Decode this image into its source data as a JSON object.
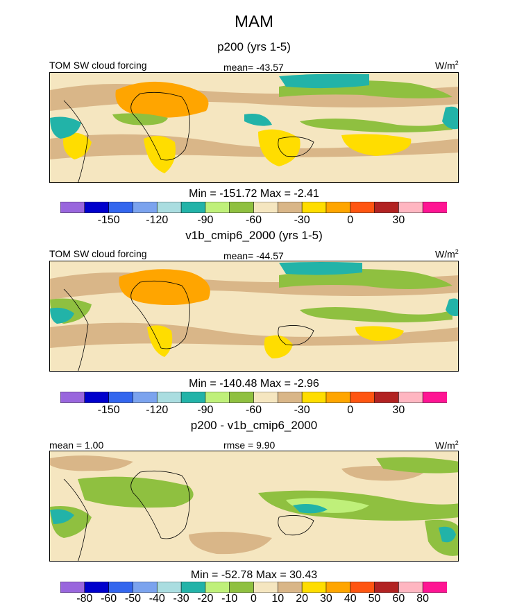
{
  "title": "MAM",
  "colors": {
    "abs": [
      "#9966dd",
      "#0000cc",
      "#3366ee",
      "#7ba3ee",
      "#aadde0",
      "#22b3a8",
      "#bff07a",
      "#8fc040",
      "#f5e6c0",
      "#d9b688",
      "#ffdd00",
      "#ffa500",
      "#ff5511",
      "#b22222",
      "#ffb6c1",
      "#ff1493"
    ],
    "diff": [
      "#9966dd",
      "#0000cc",
      "#3366ee",
      "#7ba3ee",
      "#aadde0",
      "#22b3a8",
      "#bff07a",
      "#8fc040",
      "#f5e6c0",
      "#d9b688",
      "#ffdd00",
      "#ffa500",
      "#ff5511",
      "#b22222",
      "#ffb6c1",
      "#ff1493"
    ]
  },
  "chart_data": [
    {
      "type": "heatmap",
      "subtitle": "p200 (yrs 1-5)",
      "variable": "TOM SW cloud forcing",
      "mean_text": "mean= -43.57",
      "units": "W/m",
      "units_sup": "2",
      "minmax_text": "Min = -151.72 Max =  -2.41",
      "min": -151.72,
      "max": -2.41,
      "mean": -43.57,
      "colorbar_levels": [
        -165,
        -150,
        -135,
        -120,
        -105,
        -90,
        -75,
        -60,
        -45,
        -30,
        -15,
        0,
        15,
        30,
        45
      ],
      "tick_labels": [
        "-150",
        "-120",
        "-90",
        "-60",
        "-30",
        "0",
        "30"
      ]
    },
    {
      "type": "heatmap",
      "subtitle": "v1b_cmip6_2000 (yrs 1-5)",
      "variable": "TOM SW cloud forcing",
      "mean_text": "mean= -44.57",
      "units": "W/m",
      "units_sup": "2",
      "minmax_text": "Min = -140.48 Max =  -2.96",
      "min": -140.48,
      "max": -2.96,
      "mean": -44.57,
      "colorbar_levels": [
        -165,
        -150,
        -135,
        -120,
        -105,
        -90,
        -75,
        -60,
        -45,
        -30,
        -15,
        0,
        15,
        30,
        45
      ],
      "tick_labels": [
        "-150",
        "-120",
        "-90",
        "-60",
        "-30",
        "0",
        "30"
      ]
    },
    {
      "type": "heatmap",
      "subtitle": "p200 - v1b_cmip6_2000",
      "left_text": "mean =   1.00",
      "rmse_text": "rmse =   9.90",
      "units": "W/m",
      "units_sup": "2",
      "minmax_text": "Min = -52.78 Max =  30.43",
      "min": -52.78,
      "max": 30.43,
      "mean": 1.0,
      "rmse": 9.9,
      "colorbar_levels": [
        -80,
        -60,
        -50,
        -40,
        -30,
        -20,
        -10,
        0,
        10,
        20,
        30,
        40,
        50,
        60,
        80
      ],
      "tick_labels": [
        "-80",
        "-60",
        "-50",
        "-40",
        "-30",
        "-20",
        "-10",
        "0",
        "10",
        "20",
        "30",
        "40",
        "50",
        "60",
        "80"
      ]
    }
  ]
}
